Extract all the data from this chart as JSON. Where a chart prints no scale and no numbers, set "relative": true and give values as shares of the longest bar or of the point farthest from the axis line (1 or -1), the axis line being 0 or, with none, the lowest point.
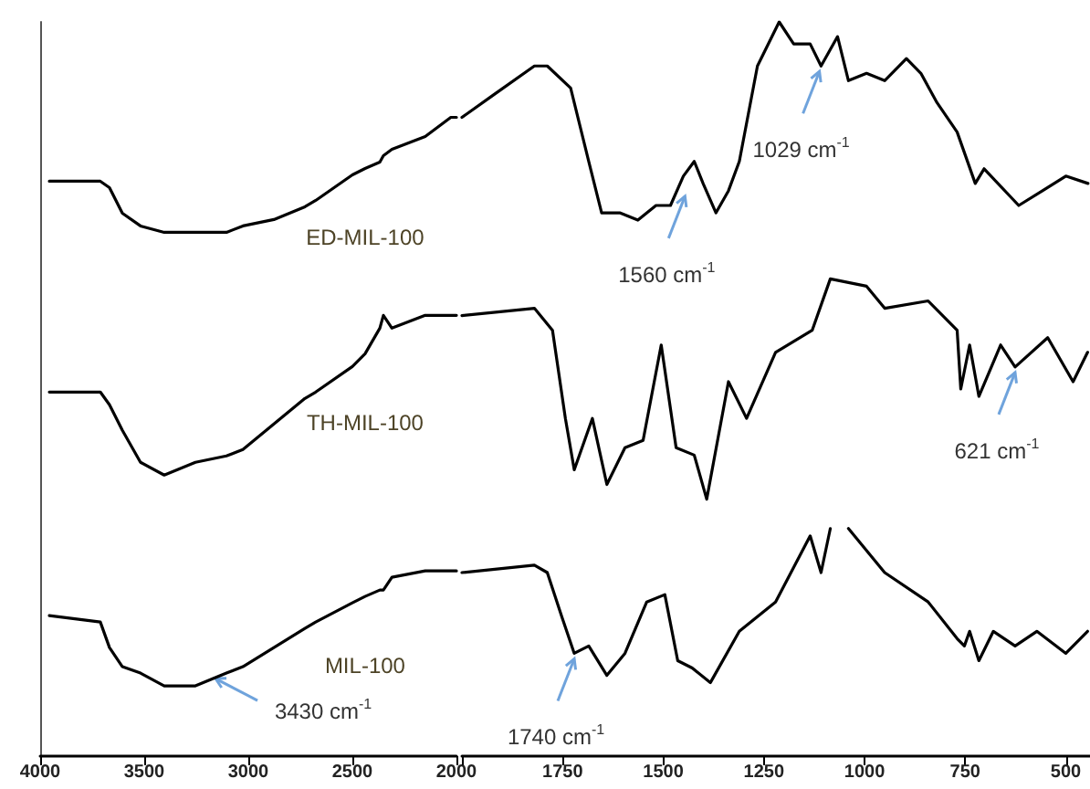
{
  "chart_data": [
    {
      "type": "line",
      "relative": true,
      "marker": "none",
      "xlim": [
        4000,
        2000
      ],
      "xticks": [
        4000,
        3500,
        3000,
        2500,
        2000
      ],
      "tick_labels": "x",
      "x": [
        3956,
        3711,
        3667,
        3605,
        3518,
        3404,
        3254,
        3105,
        3026,
        2877,
        2728,
        2676,
        2500,
        2439,
        2368,
        2351,
        2310,
        2150,
        2027,
        2000
      ],
      "series": [
        {
          "name": "ED-MIL-100",
          "color": "#000000",
          "values": [
            0.9,
            0.9,
            0.89,
            0.85,
            0.83,
            0.82,
            0.82,
            0.82,
            0.83,
            0.84,
            0.86,
            0.87,
            0.91,
            0.92,
            0.93,
            0.94,
            0.95,
            0.97,
            1.0,
            1.0
          ]
        },
        {
          "name": "TH-MIL-100",
          "color": "#000000",
          "values": [
            0.57,
            0.57,
            0.55,
            0.51,
            0.46,
            0.44,
            0.46,
            0.47,
            0.48,
            0.52,
            0.56,
            0.57,
            0.61,
            0.63,
            0.67,
            0.69,
            0.67,
            0.69,
            0.69,
            0.69
          ]
        },
        {
          "name": "MIL-100",
          "color": "#000000",
          "values": [
            0.22,
            0.21,
            0.17,
            0.14,
            0.13,
            0.11,
            0.11,
            0.13,
            0.14,
            0.17,
            0.2,
            0.21,
            0.24,
            0.25,
            0.26,
            0.26,
            0.28,
            0.29,
            0.29,
            0.29
          ]
        }
      ],
      "annotations": [
        {
          "text": "3430 cm$^{-1}$",
          "x": 3184,
          "y": 0.13
        }
      ]
    },
    {
      "type": "line",
      "relative": true,
      "marker": "none",
      "xlim": [
        2000,
        440
      ],
      "xticks": [
        {
          "value": 2000,
          "label": null
        },
        1750,
        1500,
        1250,
        1000,
        750,
        500
      ],
      "tick_labels": "x",
      "series": [
        {
          "color": "#000000",
          "x": [
            2000,
            1923,
            1820,
            1788,
            1730,
            1685,
            1653,
            1608,
            1563,
            1518,
            1482,
            1450,
            1423,
            1401,
            1369,
            1338,
            1311,
            1266,
            1212,
            1176,
            1135,
            1108,
            1067,
            1040,
            995,
            950,
            896,
            860,
            820,
            770,
            725,
            703,
            617,
            558,
            500,
            445
          ],
          "values": [
            0.87,
            0.9,
            0.94,
            0.94,
            0.91,
            0.81,
            0.74,
            0.74,
            0.73,
            0.75,
            0.75,
            0.79,
            0.81,
            0.78,
            0.74,
            0.77,
            0.81,
            0.94,
            1.0,
            0.97,
            0.97,
            0.94,
            0.98,
            0.92,
            0.93,
            0.92,
            0.95,
            0.93,
            0.89,
            0.85,
            0.78,
            0.8,
            0.75,
            0.77,
            0.79,
            0.78
          ]
        },
        {
          "color": "#000000",
          "x": [
            2000,
            1820,
            1775,
            1743,
            1721,
            1676,
            1640,
            1595,
            1550,
            1505,
            1468,
            1423,
            1392,
            1338,
            1293,
            1221,
            1130,
            1085,
            995,
            950,
            842,
            770,
            761,
            739,
            716,
            662,
            626,
            545,
            482,
            446
          ],
          "values": [
            0.6,
            0.61,
            0.58,
            0.46,
            0.39,
            0.46,
            0.37,
            0.42,
            0.43,
            0.56,
            0.42,
            0.41,
            0.35,
            0.51,
            0.46,
            0.55,
            0.58,
            0.65,
            0.64,
            0.61,
            0.62,
            0.58,
            0.5,
            0.56,
            0.49,
            0.56,
            0.53,
            0.57,
            0.51,
            0.55
          ]
        },
        {
          "color": "#000000",
          "x": [
            2000,
            1820,
            1788,
            1752,
            1721,
            1685,
            1640,
            1595,
            1541,
            1496,
            1464,
            1428,
            1383,
            1311,
            1221,
            1135,
            1108,
            1085,
            1075,
            1040,
            950,
            842,
            770,
            752,
            739,
            716,
            680,
            626,
            572,
            500,
            446
          ],
          "values": [
            0.25,
            0.26,
            0.25,
            0.19,
            0.14,
            0.15,
            0.11,
            0.14,
            0.21,
            0.22,
            0.13,
            0.12,
            0.1,
            0.17,
            0.21,
            0.3,
            0.25,
            0.31,
            null,
            0.31,
            0.25,
            0.21,
            0.16,
            0.15,
            0.17,
            0.13,
            0.17,
            0.15,
            0.17,
            0.14,
            0.17
          ]
        }
      ],
      "annotations": [
        {
          "text": "1560 cm$^{-1}$",
          "x": 1446,
          "y": 0.77
        },
        {
          "text": "1029 cm$^{-1}$",
          "x": 1112,
          "y": 0.94
        },
        {
          "text": "621 cm$^{-1}$",
          "x": 626,
          "y": 0.53
        },
        {
          "text": "1740 cm$^{-1}$",
          "x": 1721,
          "y": 0.14
        }
      ]
    }
  ]
}
